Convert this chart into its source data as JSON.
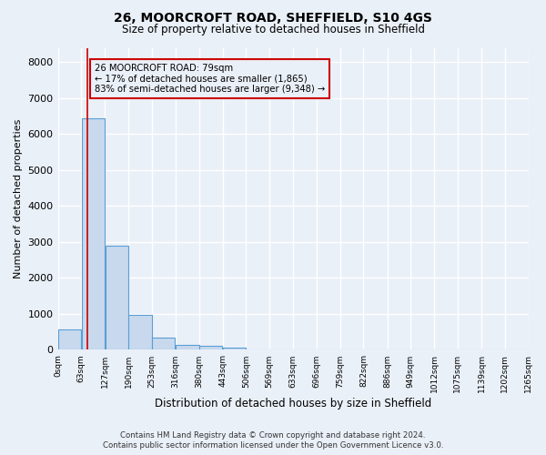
{
  "title_line1": "26, MOORCROFT ROAD, SHEFFIELD, S10 4GS",
  "title_line2": "Size of property relative to detached houses in Sheffield",
  "xlabel": "Distribution of detached houses by size in Sheffield",
  "ylabel": "Number of detached properties",
  "annotation_line1": "26 MOORCROFT ROAD: 79sqm",
  "annotation_line2": "← 17% of detached houses are smaller (1,865)",
  "annotation_line3": "83% of semi-detached houses are larger (9,348) →",
  "property_size_sqm": 79,
  "bin_edges": [
    0,
    63,
    127,
    190,
    253,
    316,
    380,
    443,
    506,
    569,
    633,
    696,
    759,
    822,
    886,
    949,
    1012,
    1075,
    1139,
    1202,
    1265
  ],
  "bar_heights": [
    570,
    6430,
    2900,
    975,
    335,
    150,
    110,
    65,
    0,
    0,
    0,
    0,
    0,
    0,
    0,
    0,
    0,
    0,
    0,
    0
  ],
  "bar_color": "#c8d9ee",
  "bar_edge_color": "#5a9fd4",
  "vline_color": "#cc0000",
  "vline_x": 79,
  "annotation_box_edgecolor": "#cc0000",
  "background_color": "#eaf0f8",
  "grid_color": "#ffffff",
  "footer_line1": "Contains HM Land Registry data © Crown copyright and database right 2024.",
  "footer_line2": "Contains public sector information licensed under the Open Government Licence v3.0.",
  "ylim": [
    0,
    8400
  ],
  "yticks": [
    0,
    1000,
    2000,
    3000,
    4000,
    5000,
    6000,
    7000,
    8000
  ]
}
